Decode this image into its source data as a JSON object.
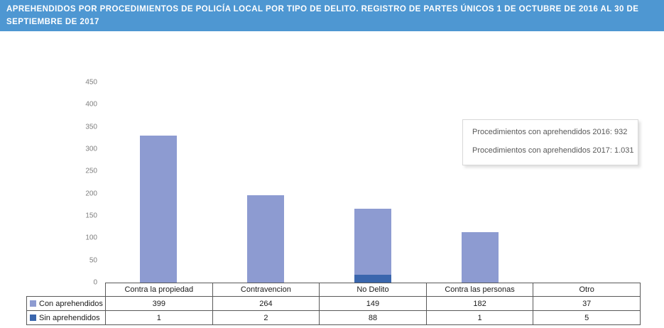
{
  "header": {
    "title": "APREHENDIDOS POR PROCEDIMIENTOS DE POLICÍA LOCAL POR TIPO DE DELITO. REGISTRO DE PARTES ÚNICOS 1 DE OCTUBRE DE 2016 AL 30 DE SEPTIEMBRE DE 2017"
  },
  "annotation": {
    "line1": "Procedimientos con aprehendidos 2016: 932",
    "line2": "Procedimientos con aprehendidos 2017: 1.031"
  },
  "colors": {
    "header_bg": "#4E97D2",
    "header_text": "#FFFFFF",
    "con_aprehendidos": "#8D9BD1",
    "sin_aprehendidos": "#3A66AD",
    "axis_text": "#7F7F7F",
    "annotation_text": "#595959",
    "table_border": "#595959"
  },
  "chart_data": {
    "type": "bar",
    "stacked": true,
    "title": "APREHENDIDOS POR PROCEDIMIENTOS DE POLICÍA LOCAL POR TIPO DE DELITO. REGISTRO DE PARTES ÚNICOS 1 DE OCTUBRE DE 2016 AL 30 DE SEPTIEMBRE DE 2017",
    "categories": [
      "Contra la propiedad",
      "Contravencion",
      "No Delito",
      "Contra las personas",
      "Otro"
    ],
    "series": [
      {
        "name": "Con aprehendidos",
        "color": "#8D9BD1",
        "values": [
          399,
          264,
          149,
          182,
          37
        ]
      },
      {
        "name": "Sin aprehendidos",
        "color": "#3A66AD",
        "values": [
          1,
          2,
          88,
          1,
          5
        ]
      }
    ],
    "stack_order_bottom_to_top": [
      "Sin aprehendidos",
      "Con aprehendidos"
    ],
    "ylim": [
      0,
      450
    ],
    "ytick_step": 50,
    "ytick_labels": [
      "0",
      "50",
      "100",
      "150",
      "200",
      "250",
      "300",
      "350",
      "400",
      "450"
    ],
    "grid": false,
    "legend_position": "table-left",
    "annotations": [
      "Procedimientos con aprehendidos 2016: 932",
      "Procedimientos con aprehendidos 2017: 1.031"
    ]
  }
}
